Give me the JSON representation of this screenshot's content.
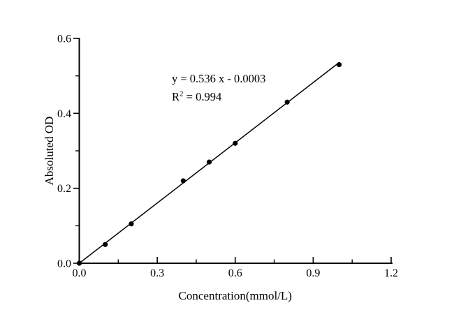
{
  "figure": {
    "background": "#ffffff",
    "foreground": "#000000"
  },
  "chart_data": {
    "type": "scatter",
    "title": "",
    "xlabel": "Concentration(mmol/L)",
    "ylabel": "Absoluted OD",
    "xlim": [
      0.0,
      1.2
    ],
    "ylim": [
      0.0,
      0.6
    ],
    "grid": false,
    "legend_position": "none",
    "x_major_ticks": [
      0.0,
      0.3,
      0.6,
      0.9,
      1.2
    ],
    "x_tick_labels": [
      "0.0",
      "0.3",
      "0.6",
      "0.9",
      "1.2"
    ],
    "x_minor_ticks": [
      0.15,
      0.45,
      0.75,
      1.05
    ],
    "y_major_ticks": [
      0.0,
      0.2,
      0.4,
      0.6
    ],
    "y_tick_labels": [
      "0.0",
      "0.2",
      "0.4",
      "0.6"
    ],
    "y_minor_ticks": [
      0.1,
      0.3,
      0.5
    ],
    "series": [
      {
        "name": "standard-curve-points",
        "marker": "filled-circle",
        "color": "#000000",
        "points": [
          [
            0.0,
            0.0
          ],
          [
            0.1,
            0.05
          ],
          [
            0.2,
            0.105
          ],
          [
            0.4,
            0.22
          ],
          [
            0.5,
            0.27
          ],
          [
            0.6,
            0.32
          ],
          [
            0.8,
            0.43
          ],
          [
            1.0,
            0.53
          ]
        ]
      }
    ],
    "fit_line": {
      "slope": 0.536,
      "intercept": -0.0003,
      "x_start": 0.0,
      "x_end": 1.0,
      "color": "#000000"
    },
    "annotation": {
      "equation": "y = 0.536 x - 0.0003",
      "r_base": "R",
      "r_exp": "2",
      "r_rest": " = 0.994"
    }
  }
}
